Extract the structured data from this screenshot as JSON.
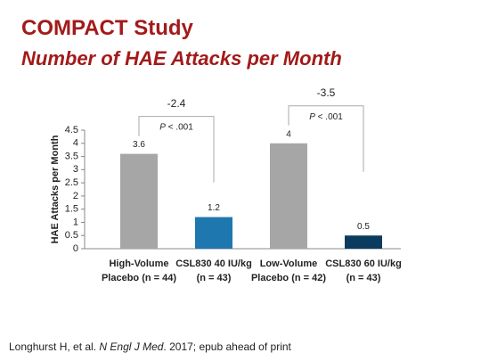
{
  "chart_data": {
    "type": "bar",
    "title": "COMPACT Study",
    "subtitle": "Number of HAE Attacks per Month",
    "y_label": "HAE Attacks per Month",
    "categories": [
      [
        "High-Volume",
        "Placebo (n = 44)"
      ],
      [
        "CSL830 40 IU/kg",
        "(n = 43)"
      ],
      [
        "Low-Volume",
        "Placebo (n = 42)"
      ],
      [
        "CSL830 60 IU/kg",
        "(n = 43)"
      ]
    ],
    "values": [
      3.6,
      1.2,
      4,
      0.5
    ],
    "colors": [
      "#a6a6a6",
      "#1f77b0",
      "#a6a6a6",
      "#0b3b5e"
    ],
    "ylim": [
      0,
      4.5
    ],
    "yticks": [
      0,
      0.5,
      1,
      1.5,
      2,
      2.5,
      3,
      3.5,
      4,
      4.5
    ],
    "annotations": [
      {
        "difference": -2.4,
        "p_value": "P < .001"
      },
      {
        "difference": -3.5,
        "p_value": "P < .001"
      }
    ],
    "footnote": [
      "Longhurst H, et al. ",
      "N Engl J Med",
      ". 2017; epub ahead of print"
    ]
  }
}
